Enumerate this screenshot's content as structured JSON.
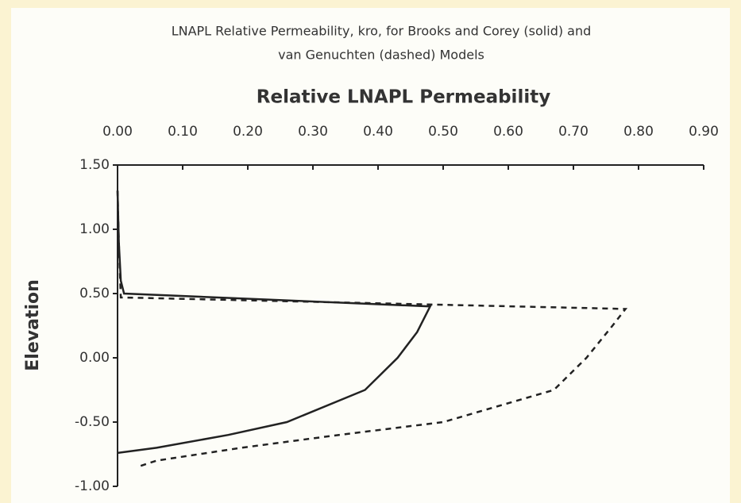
{
  "chart_data": {
    "type": "line",
    "title": [
      "LNAPL Relative Permeability, kro, for Brooks and Corey (solid) and",
      "van Genuchten (dashed) Models"
    ],
    "x_label": "Relative LNAPL Permeability",
    "y_label": "Elevation",
    "x_axis_position": "top",
    "xlim": [
      0,
      0.9
    ],
    "xticks": [
      {
        "value": 0,
        "label": "0.00"
      },
      {
        "value": 0.1,
        "label": "0.10"
      },
      {
        "value": 0.2,
        "label": "0.20"
      },
      {
        "value": 0.3,
        "label": "0.30"
      },
      {
        "value": 0.4,
        "label": "0.40"
      },
      {
        "value": 0.5,
        "label": "0.50"
      },
      {
        "value": 0.6,
        "label": "0.60"
      },
      {
        "value": 0.7,
        "label": "0.70"
      },
      {
        "value": 0.8,
        "label": "0.80"
      },
      {
        "value": 0.9,
        "label": "0.90"
      }
    ],
    "ylim": [
      -1,
      1.5
    ],
    "yticks": [
      {
        "value": -1,
        "label": "-1.00"
      },
      {
        "value": -0.5,
        "label": "-0.50"
      },
      {
        "value": 0,
        "label": "0.00"
      },
      {
        "value": 0.5,
        "label": "0.50"
      },
      {
        "value": 1,
        "label": "1.00"
      },
      {
        "value": 1.5,
        "label": "1.50"
      }
    ],
    "grid": false,
    "series": [
      {
        "color": "#222222",
        "dash": false,
        "x": [
          0,
          0.002,
          0.005,
          0.01,
          0.48,
          0.46,
          0.43,
          0.38,
          0.26,
          0.17,
          0.06,
          0
        ],
        "values": [
          1.3,
          0.9,
          0.6,
          0.5,
          0.4,
          0.2,
          0,
          -0.25,
          -0.5,
          -0.6,
          -0.7,
          -0.74
        ]
      },
      {
        "color": "#222222",
        "dash": true,
        "x": [
          0,
          0.002,
          0.005,
          0.78,
          0.76,
          0.72,
          0.67,
          0.5,
          0.34,
          0.19,
          0.06,
          0.03
        ],
        "values": [
          1.3,
          0.9,
          0.47,
          0.38,
          0.25,
          0,
          -0.25,
          -0.5,
          -0.6,
          -0.7,
          -0.8,
          -0.85
        ]
      }
    ]
  }
}
